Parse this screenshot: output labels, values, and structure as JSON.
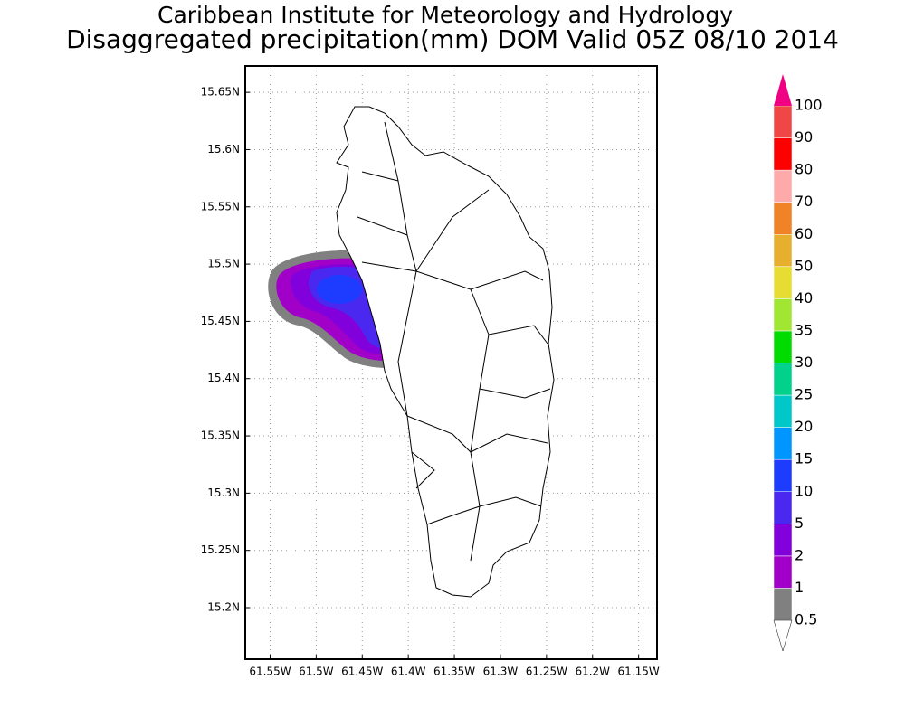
{
  "header": {
    "title": "Caribbean Institute for Meteorology and Hydrology",
    "subtitle": "Disaggregated precipitation(mm) DOM Valid 05Z 08/10 2014"
  },
  "map": {
    "xlim": [
      -61.577,
      -61.13
    ],
    "ylim": [
      15.155,
      15.673
    ],
    "xticks": [
      {
        "value": -61.55,
        "label": "61.55W"
      },
      {
        "value": -61.5,
        "label": "61.5W"
      },
      {
        "value": -61.45,
        "label": "61.45W"
      },
      {
        "value": -61.4,
        "label": "61.4W"
      },
      {
        "value": -61.35,
        "label": "61.35W"
      },
      {
        "value": -61.3,
        "label": "61.3W"
      },
      {
        "value": -61.25,
        "label": "61.25W"
      },
      {
        "value": -61.2,
        "label": "61.2W"
      },
      {
        "value": -61.15,
        "label": "61.15W"
      }
    ],
    "yticks": [
      {
        "value": 15.2,
        "label": "15.2N"
      },
      {
        "value": 15.25,
        "label": "15.25N"
      },
      {
        "value": 15.3,
        "label": "15.3N"
      },
      {
        "value": 15.35,
        "label": "15.35N"
      },
      {
        "value": 15.4,
        "label": "15.4N"
      },
      {
        "value": 15.45,
        "label": "15.45N"
      },
      {
        "value": 15.5,
        "label": "15.5N"
      },
      {
        "value": 15.55,
        "label": "15.55N"
      },
      {
        "value": 15.6,
        "label": "15.6N"
      },
      {
        "value": 15.65,
        "label": "15.65N"
      }
    ],
    "grid": true
  },
  "colorbar": {
    "levels": [
      0.5,
      1,
      2,
      5,
      10,
      15,
      20,
      25,
      30,
      35,
      40,
      50,
      60,
      70,
      80,
      90,
      100
    ],
    "colors": [
      "#ffffff",
      "#808080",
      "#a000c8",
      "#8200dc",
      "#4b28f0",
      "#1e3cff",
      "#0096ff",
      "#00c8c8",
      "#00d28c",
      "#00dc00",
      "#a0e632",
      "#e6dc32",
      "#e6af2d",
      "#f08228",
      "#ffaaaa",
      "#ff0000",
      "#f04646",
      "#f00082"
    ]
  }
}
